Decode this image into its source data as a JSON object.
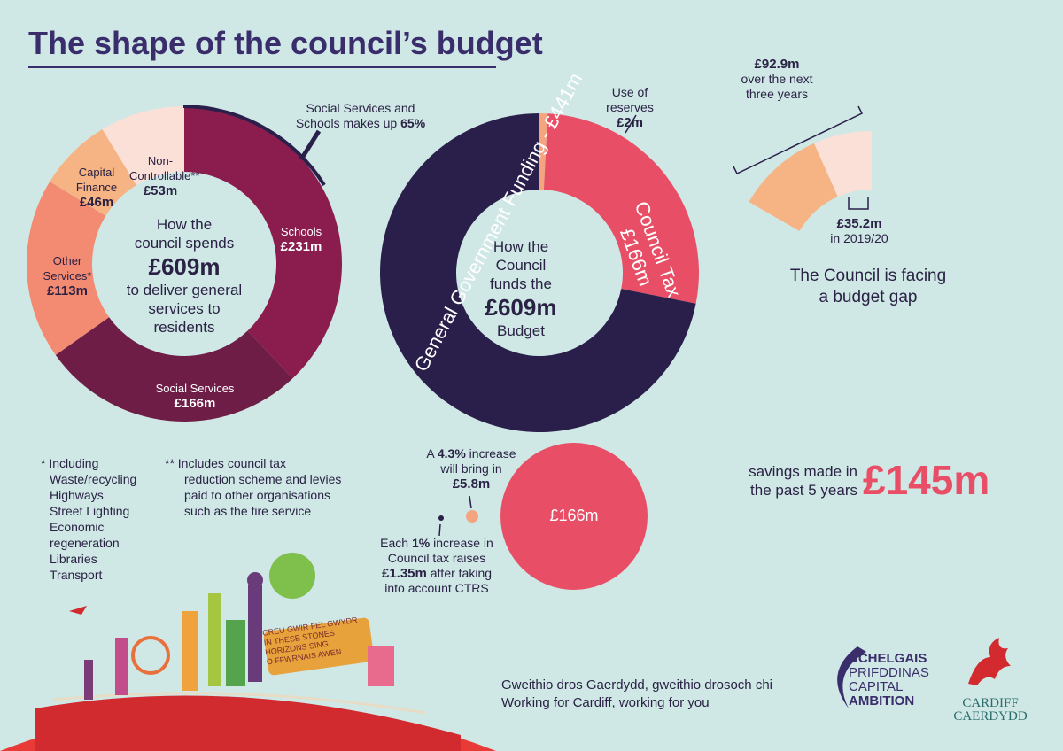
{
  "title": "The shape of the council’s budget",
  "colors": {
    "dark": "#2a1f4a",
    "schools": "#8a1d4e",
    "social": "#6e1e46",
    "other": "#f38a72",
    "capital": "#f6b383",
    "noncontrol": "#fbe0d8",
    "council_tax": "#e84f66",
    "reserves": "#f4a57f",
    "bg": "#cfe8e6"
  },
  "spend": {
    "center_line1": "How the",
    "center_line2": "council spends",
    "center_amount": "£609m",
    "center_line3": "to deliver general",
    "center_line4": "services to",
    "center_line5": "residents",
    "callout_line1": "Social Services and",
    "callout_line2": "Schools makes up",
    "callout_pct": "65%",
    "segments": [
      {
        "name": "Schools",
        "value": "£231m"
      },
      {
        "name": "Social Services",
        "value": "£166m"
      },
      {
        "name": "Other Services*",
        "value": "£113m"
      },
      {
        "name": "Capital Finance",
        "value": "£46m"
      },
      {
        "name": "Non-Controllable**",
        "value": "£53m"
      }
    ],
    "other_l1": "Other",
    "other_l2": "Services*",
    "capital_l1": "Capital",
    "capital_l2": "Finance",
    "noncontrol_l1": "Non-",
    "noncontrol_l2": "Controllable**"
  },
  "fund": {
    "reserves_label": "Use of reserves",
    "reserves_value": "£2m",
    "govt_label": "General Government Funding - £441m",
    "tax_label": "Council Tax",
    "tax_value": "£166m",
    "center_line1": "How the Council",
    "center_line2": "funds the",
    "center_amount": "£609m",
    "center_line3": "Budget"
  },
  "gap": {
    "top_value": "£92.9m",
    "top_line1": "over the next",
    "top_line2": "three years",
    "inner_value": "£35.2m",
    "inner_line": "in 2019/20",
    "center_line1": "The Council is facing",
    "center_line2": "a budget gap"
  },
  "savings": {
    "line1": "savings made in",
    "line2": "the past 5 years",
    "value": "£145m"
  },
  "notes": {
    "star_heading": "* Including",
    "star_items": [
      "Waste/recycling",
      "Highways",
      "Street Lighting",
      "Economic",
      "regeneration",
      "Libraries",
      "Transport"
    ],
    "dstar_lines": [
      "** Includes council tax",
      "reduction scheme and levies",
      "paid to other organisations",
      "such as the fire service"
    ]
  },
  "tax_increase": {
    "top_line1_a": "A ",
    "top_pct": "4.3%",
    "top_line1_b": " increase",
    "top_line2": "will bring in",
    "top_value": "£5.8m",
    "circle_value": "£166m",
    "bot_line1_a": "Each ",
    "bot_pct": "1%",
    "bot_line1_b": " increase in",
    "bot_line2": "Council tax raises",
    "bot_value": "£1.35m",
    "bot_line3_b": " after taking",
    "bot_line4": "into account CTRS"
  },
  "footer": {
    "tag1": "Gweithio dros Gaerdydd, gweithio drosoch chi",
    "tag2": "Working for Cardiff, working for you",
    "logo1": [
      "UCHELGAIS",
      "PRIFDDINAS",
      "CAPITAL",
      "AMBITION"
    ],
    "logo2": [
      "CARDIFF",
      "CAERDYDD"
    ],
    "sign": [
      "CREU GWIR FEL GWYDR",
      "IN THESE STONES",
      "HORIZONS SING",
      "O FFWRNAIS AWEN"
    ]
  },
  "chart_data": [
    {
      "type": "pie",
      "title": "How the council spends £609m to deliver general services to residents",
      "categories": [
        "Schools",
        "Social Services",
        "Other Services*",
        "Capital Finance",
        "Non-Controllable**"
      ],
      "values": [
        231,
        166,
        113,
        46,
        53
      ]
    },
    {
      "type": "pie",
      "title": "How the Council funds the £609m Budget",
      "categories": [
        "General Government Funding",
        "Council Tax",
        "Use of reserves"
      ],
      "values": [
        441,
        166,
        2
      ]
    },
    {
      "type": "pie",
      "title": "The Council is facing a budget gap",
      "categories": [
        "£35.2m in 2019/20",
        "£92.9m over the next three years"
      ],
      "values": [
        35.2,
        57.7
      ]
    }
  ]
}
